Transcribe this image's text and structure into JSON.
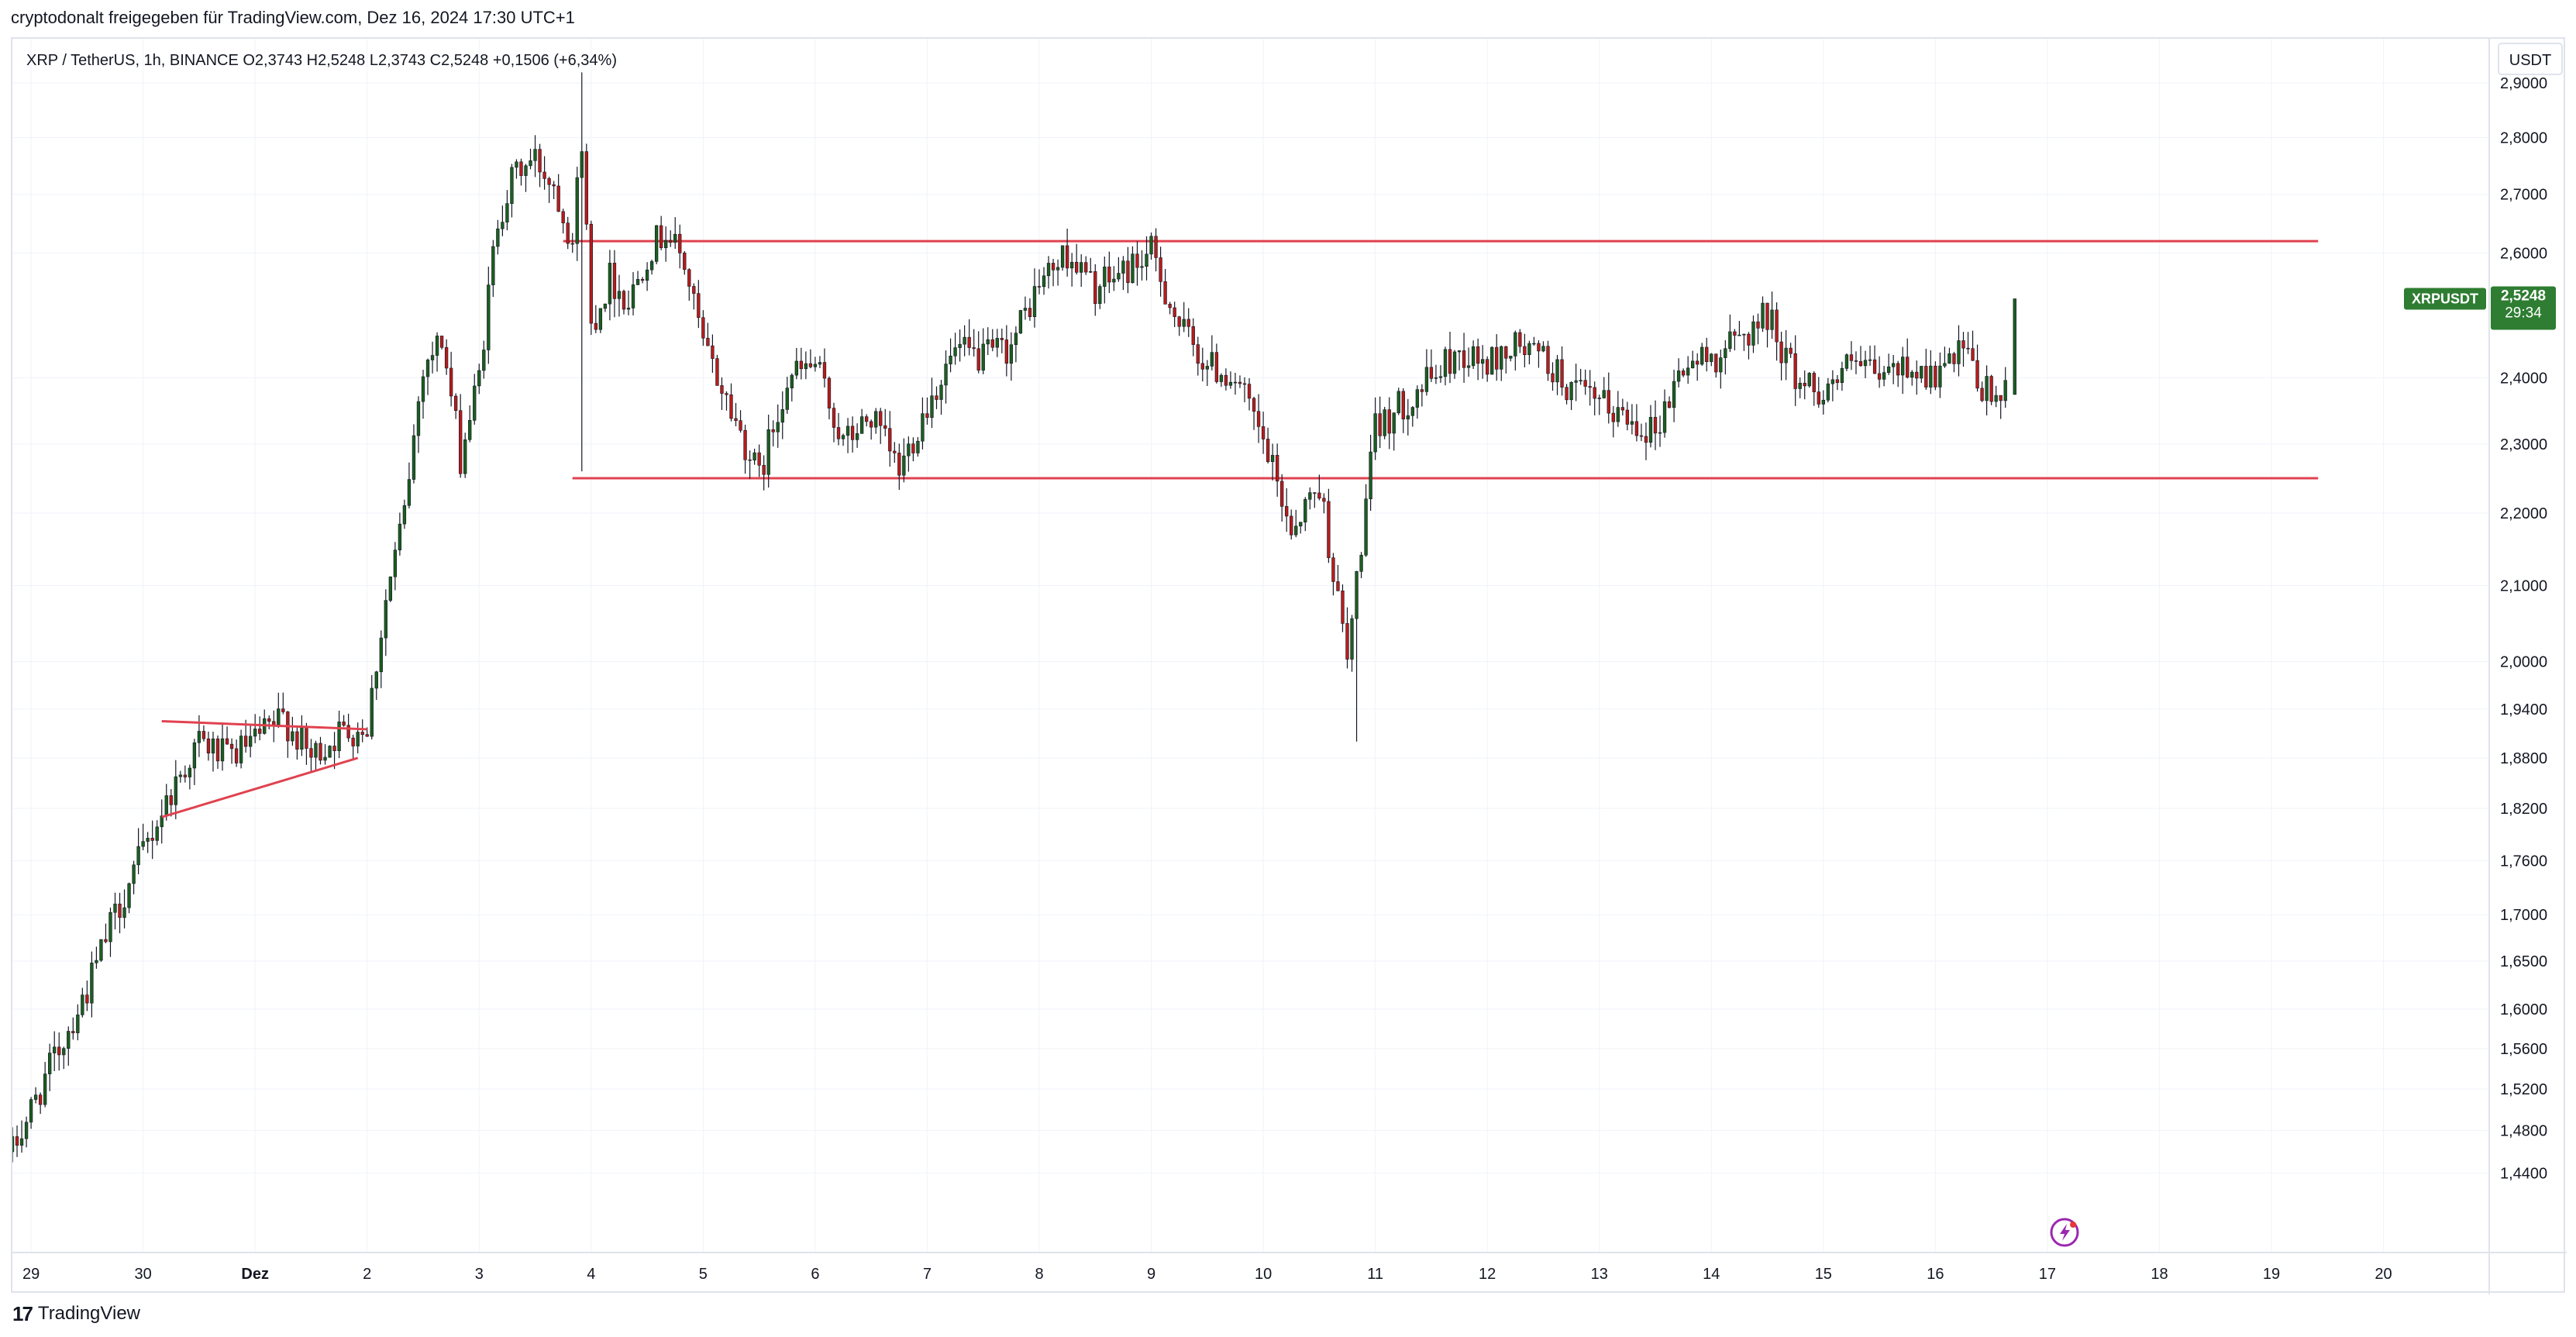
{
  "header": {
    "shared_by": "cryptodonalt freigegeben für TradingView.com, Dez 16, 2024 17:30 UTC+1"
  },
  "footer": {
    "brand": "TradingView",
    "logo_mark": "17"
  },
  "colors": {
    "up": "#1b5e20",
    "down": "#b71c1c",
    "wick": "#131722",
    "level_line": "#e0424f",
    "grid": "#f0f3fa",
    "badge_bg": "#2e7d32",
    "flash_icon": "#9c27b0"
  },
  "icons": {
    "flash": "lightning-bolt-icon"
  },
  "chart_data": {
    "type": "candlestick",
    "symbol_legend": "XRP / TetherUS, 1h, BINANCE  O2,3743  H2,5248  L2,3743  C2,5248  +0,1506 (+6,34%)",
    "currency": "USDT",
    "scale": "log",
    "price_badge": {
      "symbol": "XRPUSDT",
      "price": "2,5248",
      "countdown": "29:34",
      "value": 2.5248
    },
    "ylim": [
      1.41,
      2.96
    ],
    "y_ticks": [
      {
        "v": 2.9,
        "label": "2,9000"
      },
      {
        "v": 2.8,
        "label": "2,8000"
      },
      {
        "v": 2.7,
        "label": "2,7000"
      },
      {
        "v": 2.6,
        "label": "2,6000"
      },
      {
        "v": 2.4,
        "label": "2,4000"
      },
      {
        "v": 2.3,
        "label": "2,3000"
      },
      {
        "v": 2.2,
        "label": "2,2000"
      },
      {
        "v": 2.1,
        "label": "2,1000"
      },
      {
        "v": 2.0,
        "label": "2,0000"
      },
      {
        "v": 1.94,
        "label": "1,9400"
      },
      {
        "v": 1.88,
        "label": "1,8800"
      },
      {
        "v": 1.82,
        "label": "1,8200"
      },
      {
        "v": 1.76,
        "label": "1,7600"
      },
      {
        "v": 1.7,
        "label": "1,7000"
      },
      {
        "v": 1.65,
        "label": "1,6500"
      },
      {
        "v": 1.6,
        "label": "1,6000"
      },
      {
        "v": 1.56,
        "label": "1,5600"
      },
      {
        "v": 1.52,
        "label": "1,5200"
      },
      {
        "v": 1.48,
        "label": "1,4800"
      },
      {
        "v": 1.44,
        "label": "1,4400"
      }
    ],
    "xlim_days": [
      "2024-11-28 20:00",
      "2024-12-20 20:00"
    ],
    "x_ticks": [
      {
        "d": "2024-11-29",
        "label": "29"
      },
      {
        "d": "2024-11-30",
        "label": "30"
      },
      {
        "d": "2024-12-01",
        "label": "Dez"
      },
      {
        "d": "2024-12-02",
        "label": "2"
      },
      {
        "d": "2024-12-03",
        "label": "3"
      },
      {
        "d": "2024-12-04",
        "label": "4"
      },
      {
        "d": "2024-12-05",
        "label": "5"
      },
      {
        "d": "2024-12-06",
        "label": "6"
      },
      {
        "d": "2024-12-07",
        "label": "7"
      },
      {
        "d": "2024-12-08",
        "label": "8"
      },
      {
        "d": "2024-12-09",
        "label": "9"
      },
      {
        "d": "2024-12-10",
        "label": "10"
      },
      {
        "d": "2024-12-11",
        "label": "11"
      },
      {
        "d": "2024-12-12",
        "label": "12"
      },
      {
        "d": "2024-12-13",
        "label": "13"
      },
      {
        "d": "2024-12-14",
        "label": "14"
      },
      {
        "d": "2024-12-15",
        "label": "15"
      },
      {
        "d": "2024-12-16",
        "label": "16"
      },
      {
        "d": "2024-12-17",
        "label": "17"
      },
      {
        "d": "2024-12-18",
        "label": "18"
      },
      {
        "d": "2024-12-19",
        "label": "19"
      },
      {
        "d": "2024-12-20",
        "label": "20"
      }
    ],
    "close_path": [
      [
        "2024-11-28 20:00",
        1.46
      ],
      [
        "2024-11-29 00:00",
        1.5
      ],
      [
        "2024-11-29 06:00",
        1.56
      ],
      [
        "2024-11-29 12:00",
        1.62
      ],
      [
        "2024-11-29 18:00",
        1.7
      ],
      [
        "2024-11-30 00:00",
        1.77
      ],
      [
        "2024-11-30 06:00",
        1.84
      ],
      [
        "2024-11-30 12:00",
        1.9
      ],
      [
        "2024-11-30 18:00",
        1.88
      ],
      [
        "2024-12-01 00:00",
        1.9
      ],
      [
        "2024-12-01 06:00",
        1.93
      ],
      [
        "2024-12-01 12:00",
        1.88
      ],
      [
        "2024-12-01 18:00",
        1.91
      ],
      [
        "2024-12-02 00:00",
        1.92
      ],
      [
        "2024-12-02 04:00",
        2.08
      ],
      [
        "2024-12-02 08:00",
        2.2
      ],
      [
        "2024-12-02 12:00",
        2.42
      ],
      [
        "2024-12-02 16:00",
        2.46
      ],
      [
        "2024-12-02 20:00",
        2.28
      ],
      [
        "2024-12-03 00:00",
        2.4
      ],
      [
        "2024-12-03 04:00",
        2.66
      ],
      [
        "2024-12-03 08:00",
        2.74
      ],
      [
        "2024-12-03 12:00",
        2.76
      ],
      [
        "2024-12-03 16:00",
        2.72
      ],
      [
        "2024-12-03 20:00",
        2.62
      ],
      [
        "2024-12-03 22:00",
        2.8
      ],
      [
        "2024-12-04 00:00",
        2.48
      ],
      [
        "2024-12-04 04:00",
        2.56
      ],
      [
        "2024-12-04 08:00",
        2.52
      ],
      [
        "2024-12-04 12:00",
        2.6
      ],
      [
        "2024-12-04 16:00",
        2.64
      ],
      [
        "2024-12-04 20:00",
        2.58
      ],
      [
        "2024-12-05 00:00",
        2.45
      ],
      [
        "2024-12-05 06:00",
        2.35
      ],
      [
        "2024-12-05 12:00",
        2.25
      ],
      [
        "2024-12-05 18:00",
        2.4
      ],
      [
        "2024-12-06 00:00",
        2.42
      ],
      [
        "2024-12-06 06:00",
        2.3
      ],
      [
        "2024-12-06 12:00",
        2.34
      ],
      [
        "2024-12-06 18:00",
        2.26
      ],
      [
        "2024-12-07 00:00",
        2.36
      ],
      [
        "2024-12-07 06:00",
        2.44
      ],
      [
        "2024-12-07 12:00",
        2.43
      ],
      [
        "2024-12-07 18:00",
        2.45
      ],
      [
        "2024-12-08 00:00",
        2.55
      ],
      [
        "2024-12-08 06:00",
        2.6
      ],
      [
        "2024-12-08 12:00",
        2.54
      ],
      [
        "2024-12-08 18:00",
        2.57
      ],
      [
        "2024-12-09 00:00",
        2.6
      ],
      [
        "2024-12-09 06:00",
        2.48
      ],
      [
        "2024-12-09 12:00",
        2.42
      ],
      [
        "2024-12-09 18:00",
        2.4
      ],
      [
        "2024-12-10 00:00",
        2.3
      ],
      [
        "2024-12-10 06:00",
        2.18
      ],
      [
        "2024-12-10 12:00",
        2.24
      ],
      [
        "2024-12-10 18:00",
        2.0
      ],
      [
        "2024-12-11 00:00",
        2.32
      ],
      [
        "2024-12-11 06:00",
        2.36
      ],
      [
        "2024-12-11 12:00",
        2.4
      ],
      [
        "2024-12-11 18:00",
        2.44
      ],
      [
        "2024-12-12 00:00",
        2.42
      ],
      [
        "2024-12-12 06:00",
        2.45
      ],
      [
        "2024-12-12 12:00",
        2.43
      ],
      [
        "2024-12-12 18:00",
        2.38
      ],
      [
        "2024-12-13 00:00",
        2.36
      ],
      [
        "2024-12-13 06:00",
        2.34
      ],
      [
        "2024-12-13 12:00",
        2.32
      ],
      [
        "2024-12-13 18:00",
        2.42
      ],
      [
        "2024-12-14 00:00",
        2.43
      ],
      [
        "2024-12-14 06:00",
        2.46
      ],
      [
        "2024-12-14 12:00",
        2.5
      ],
      [
        "2024-12-14 18:00",
        2.4
      ],
      [
        "2024-12-15 00:00",
        2.38
      ],
      [
        "2024-12-15 06:00",
        2.42
      ],
      [
        "2024-12-15 12:00",
        2.4
      ],
      [
        "2024-12-15 18:00",
        2.42
      ],
      [
        "2024-12-16 00:00",
        2.4
      ],
      [
        "2024-12-16 06:00",
        2.44
      ],
      [
        "2024-12-16 10:00",
        2.38
      ],
      [
        "2024-12-16 14:00",
        2.37
      ],
      [
        "2024-12-16 16:00",
        2.3743
      ]
    ],
    "last_candle": {
      "t": "2024-12-16 17:00",
      "o": 2.3743,
      "h": 2.5248,
      "l": 2.3743,
      "c": 2.5248
    },
    "special_wicks": [
      {
        "t": "2024-12-03 22:00",
        "h": 2.92,
        "l": 2.26
      },
      {
        "t": "2024-12-10 20:00",
        "h": 2.0,
        "l": 1.9
      }
    ],
    "levels": [
      {
        "name": "resistance",
        "value": 2.62,
        "from": "2024-12-03 18:00",
        "to": "2024-12-19 10:00"
      },
      {
        "name": "support",
        "value": 2.25,
        "from": "2024-12-03 20:00",
        "to": "2024-12-19 10:00"
      }
    ],
    "trendlines": [
      {
        "name": "triangle-top",
        "p1": [
          "2024-11-30 04:00",
          1.925
        ],
        "p2": [
          "2024-12-02 00:00",
          1.915
        ]
      },
      {
        "name": "triangle-bottom",
        "p1": [
          "2024-11-30 04:00",
          1.81
        ],
        "p2": [
          "2024-12-01 22:00",
          1.88
        ]
      }
    ]
  }
}
